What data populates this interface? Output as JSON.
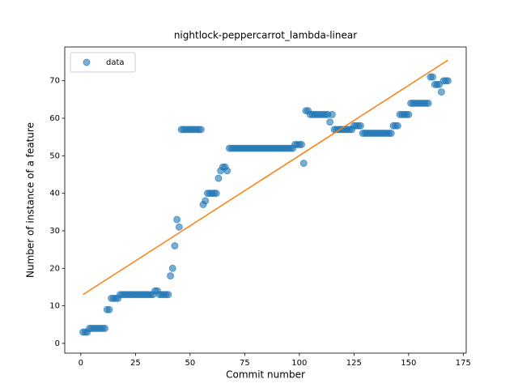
{
  "chart_data": {
    "type": "scatter",
    "title": "nightlock-peppercarrot_lambda-linear",
    "xlabel": "Commit number",
    "ylabel": "Number of instance of a feature",
    "xlim": [
      -7.35,
      176.35
    ],
    "ylim": [
      -2.6,
      79
    ],
    "xticks": [
      0,
      25,
      50,
      75,
      100,
      125,
      150,
      175
    ],
    "yticks": [
      0,
      10,
      20,
      30,
      40,
      50,
      60,
      70
    ],
    "legend": "upper left",
    "series": [
      {
        "name": "data",
        "color": "#1f77b4",
        "x": [
          1,
          2,
          3,
          4,
          5,
          6,
          7,
          8,
          9,
          10,
          11,
          12,
          13,
          14,
          15,
          16,
          17,
          18,
          19,
          20,
          21,
          22,
          23,
          24,
          25,
          26,
          27,
          28,
          29,
          30,
          31,
          32,
          33,
          34,
          35,
          36,
          37,
          38,
          39,
          40,
          41,
          42,
          43,
          44,
          45,
          46,
          47,
          48,
          49,
          50,
          51,
          52,
          53,
          54,
          55,
          56,
          57,
          58,
          59,
          60,
          61,
          62,
          63,
          64,
          65,
          66,
          67,
          68,
          69,
          70,
          71,
          72,
          73,
          74,
          75,
          76,
          77,
          78,
          79,
          80,
          81,
          82,
          83,
          84,
          85,
          86,
          87,
          88,
          89,
          90,
          91,
          92,
          93,
          94,
          95,
          96,
          97,
          98,
          99,
          100,
          101,
          102,
          103,
          104,
          105,
          106,
          107,
          108,
          109,
          110,
          111,
          112,
          113,
          114,
          115,
          116,
          117,
          118,
          119,
          120,
          121,
          122,
          123,
          124,
          125,
          126,
          127,
          128,
          129,
          130,
          131,
          132,
          133,
          134,
          135,
          136,
          137,
          138,
          139,
          140,
          141,
          142,
          143,
          144,
          145,
          146,
          147,
          148,
          149,
          150,
          151,
          152,
          153,
          154,
          155,
          156,
          157,
          158,
          159,
          160,
          161,
          162,
          163,
          164,
          165,
          166,
          167,
          168
        ],
        "values": [
          3,
          3,
          3,
          4,
          4,
          4,
          4,
          4,
          4,
          4,
          4,
          9,
          9,
          12,
          12,
          12,
          12,
          13,
          13,
          13,
          13,
          13,
          13,
          13,
          13,
          13,
          13,
          13,
          13,
          13,
          13,
          13,
          13,
          14,
          14,
          13,
          13,
          13,
          13,
          13,
          18,
          20,
          26,
          33,
          31,
          57,
          57,
          57,
          57,
          57,
          57,
          57,
          57,
          57,
          57,
          37,
          38,
          40,
          40,
          40,
          40,
          40,
          44,
          46,
          47,
          47,
          46,
          52,
          52,
          52,
          52,
          52,
          52,
          52,
          52,
          52,
          52,
          52,
          52,
          52,
          52,
          52,
          52,
          52,
          52,
          52,
          52,
          52,
          52,
          52,
          52,
          52,
          52,
          52,
          52,
          52,
          52,
          53,
          53,
          53,
          53,
          48,
          62,
          62,
          61,
          61,
          61,
          61,
          61,
          61,
          61,
          61,
          61,
          59,
          61,
          57,
          57,
          57,
          57,
          57,
          57,
          57,
          57,
          57,
          58,
          58,
          58,
          58,
          56,
          56,
          56,
          56,
          56,
          56,
          56,
          56,
          56,
          56,
          56,
          56,
          56,
          56,
          58,
          58,
          58,
          61,
          61,
          61,
          61,
          61,
          64,
          64,
          64,
          64,
          64,
          64,
          64,
          64,
          64,
          71,
          71,
          69,
          69,
          69,
          67,
          70,
          70,
          70
        ]
      },
      {
        "color": "#ff7f0e",
        "x": [
          1,
          168
        ],
        "values": [
          13,
          75.5
        ]
      }
    ]
  }
}
